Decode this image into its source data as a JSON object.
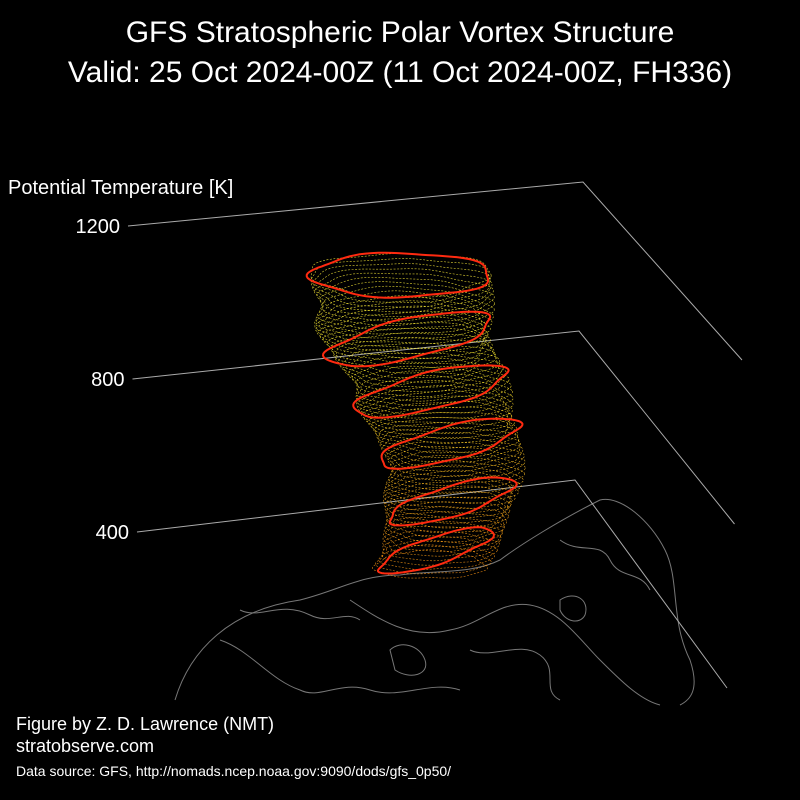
{
  "chart_data": {
    "type": "vortex3d",
    "title": "GFS Stratospheric Polar Vortex Structure",
    "subtitle": "Valid: 25 Oct 2024-00Z  (11 Oct 2024-00Z, FH336)",
    "ylabel": "Potential Temperature [K]",
    "ylim": [
      400,
      1200
    ],
    "yticks": [
      400,
      800,
      1200
    ],
    "credit": "Figure by Z. D. Lawrence (NMT)",
    "website": "stratobserve.com",
    "source": "Data source: GFS, http://nomads.ncep.noaa.gov:9090/dods/gfs_0p50/"
  }
}
